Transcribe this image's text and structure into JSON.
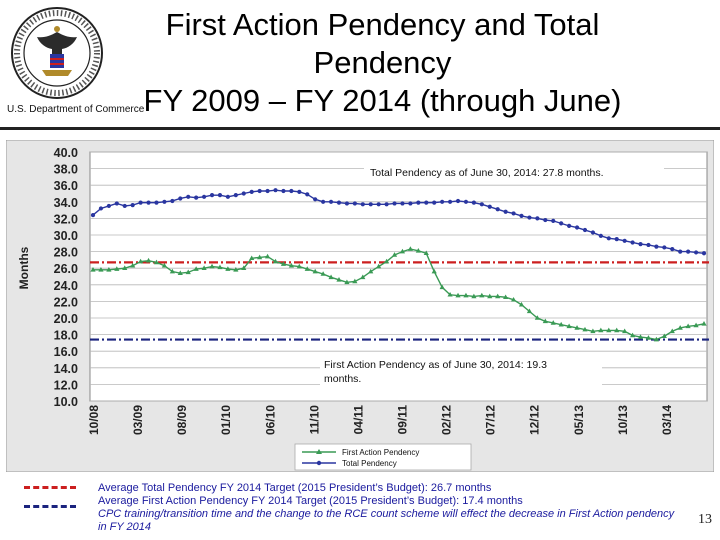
{
  "header": {
    "title_line1": "First Action Pendency and Total",
    "title_line2": "Pendency",
    "title_line3": "FY 2009 – FY 2014 (through June)",
    "department": "U.S. Department of Commerce"
  },
  "chart_data": {
    "type": "line",
    "ylabel": "Months",
    "ylim": [
      10,
      40
    ],
    "yticks": [
      "10.0",
      "12.0",
      "14.0",
      "16.0",
      "18.0",
      "20.0",
      "22.0",
      "24.0",
      "26.0",
      "28.0",
      "30.0",
      "32.0",
      "34.0",
      "36.0",
      "38.0",
      "40.0"
    ],
    "xticks": [
      "10/08",
      "03/09",
      "08/09",
      "01/10",
      "06/10",
      "11/10",
      "04/11",
      "09/11",
      "02/12",
      "07/12",
      "12/12",
      "05/13",
      "10/13",
      "03/14"
    ],
    "grid": true,
    "legend_position": "bottom-center",
    "series": [
      {
        "name": "First Action Pendency",
        "color": "#3a9a55",
        "values": [
          25.8,
          25.8,
          25.8,
          25.9,
          26.0,
          26.3,
          26.8,
          26.9,
          26.7,
          26.3,
          25.6,
          25.4,
          25.5,
          25.9,
          26.0,
          26.2,
          26.1,
          25.9,
          25.8,
          26.0,
          27.2,
          27.3,
          27.4,
          26.8,
          26.5,
          26.3,
          26.2,
          25.9,
          25.6,
          25.3,
          24.9,
          24.6,
          24.3,
          24.4,
          24.9,
          25.6,
          26.2,
          26.8,
          27.6,
          28.0,
          28.3,
          28.1,
          27.8,
          25.6,
          23.7,
          22.8,
          22.7,
          22.7,
          22.6,
          22.7,
          22.6,
          22.6,
          22.5,
          22.2,
          21.6,
          20.8,
          20.0,
          19.6,
          19.4,
          19.2,
          19.0,
          18.8,
          18.6,
          18.4,
          18.5,
          18.5,
          18.5,
          18.4,
          17.9,
          17.7,
          17.6,
          17.4,
          17.8,
          18.4,
          18.8,
          19.0,
          19.1,
          19.3
        ]
      },
      {
        "name": "Total Pendency",
        "color": "#2a36a0",
        "values": [
          32.4,
          33.2,
          33.5,
          33.8,
          33.5,
          33.6,
          33.9,
          33.9,
          33.9,
          34.0,
          34.1,
          34.4,
          34.6,
          34.5,
          34.6,
          34.8,
          34.8,
          34.6,
          34.8,
          35.0,
          35.2,
          35.3,
          35.3,
          35.4,
          35.3,
          35.3,
          35.2,
          34.9,
          34.3,
          34.0,
          34.0,
          33.9,
          33.8,
          33.8,
          33.7,
          33.7,
          33.7,
          33.7,
          33.8,
          33.8,
          33.8,
          33.9,
          33.9,
          33.9,
          34.0,
          34.0,
          34.1,
          34.0,
          33.9,
          33.7,
          33.4,
          33.1,
          32.8,
          32.6,
          32.3,
          32.1,
          32.0,
          31.8,
          31.7,
          31.4,
          31.1,
          30.9,
          30.6,
          30.3,
          29.9,
          29.6,
          29.5,
          29.3,
          29.1,
          28.9,
          28.8,
          28.6,
          28.5,
          28.3,
          28.0,
          28.0,
          27.9,
          27.8
        ]
      }
    ],
    "reference_lines": [
      {
        "name": "Average Total Pendency FY 2014 Target",
        "value": 26.7,
        "color": "#cc1f1f"
      },
      {
        "name": "Average First Action Pendency FY 2014 Target",
        "value": 17.4,
        "color": "#1a237e"
      }
    ],
    "annotations": [
      {
        "text": "Total Pendency as of June 30, 2014: 27.8 months."
      },
      {
        "text_line1": "First Action Pendency as of June 30, 2014: 19.3",
        "text_line2": "months."
      }
    ]
  },
  "footer": {
    "line1": "Average Total Pendency FY 2014 Target (2015 President’s Budget): 26.7 months",
    "line2": "Average First Action Pendency FY 2014 Target (2015 President’s Budget): 17.4 months",
    "line3": "CPC training/transition time and the change to the RCE count scheme will effect the decrease in First Action pendency in FY 2014",
    "legend_red": "#cc1f1f",
    "legend_blue": "#1a237e"
  },
  "page_number": "13"
}
